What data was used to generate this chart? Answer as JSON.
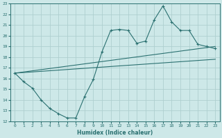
{
  "xlabel": "Humidex (Indice chaleur)",
  "xlim": [
    -0.5,
    23.5
  ],
  "ylim": [
    12,
    23
  ],
  "xticks": [
    0,
    1,
    2,
    3,
    4,
    5,
    6,
    7,
    8,
    9,
    10,
    11,
    12,
    13,
    14,
    15,
    16,
    17,
    18,
    19,
    20,
    21,
    22,
    23
  ],
  "yticks": [
    12,
    13,
    14,
    15,
    16,
    17,
    18,
    19,
    20,
    21,
    22,
    23
  ],
  "bg_color": "#cde8e8",
  "grid_color": "#aecfcf",
  "line_color": "#2a7070",
  "curve1_x": [
    0,
    1,
    2,
    3,
    4,
    5,
    6,
    7,
    8,
    9,
    10,
    11,
    12,
    13,
    14,
    15,
    16,
    17,
    18,
    19,
    20,
    21,
    22,
    23
  ],
  "curve1_y": [
    16.5,
    15.7,
    15.1,
    14.0,
    13.2,
    12.7,
    12.3,
    12.3,
    14.3,
    15.9,
    18.5,
    20.5,
    20.6,
    20.5,
    19.3,
    19.5,
    21.5,
    22.8,
    21.3,
    20.5,
    20.5,
    19.2,
    19.0,
    18.8
  ],
  "line1_x": [
    0,
    23
  ],
  "line1_y": [
    16.5,
    19.0
  ],
  "line2_x": [
    0,
    23
  ],
  "line2_y": [
    16.5,
    17.8
  ]
}
